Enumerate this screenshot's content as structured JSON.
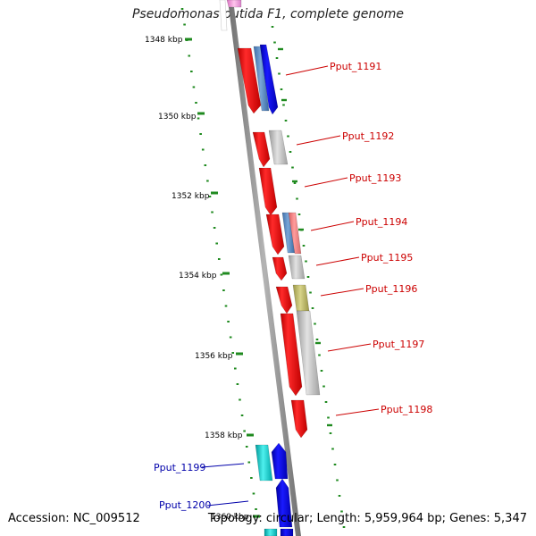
{
  "title": "Pseudomonas putida F1, complete genome",
  "accession": "Accession: NC_009512",
  "summary": "Topology: circular; Length: 5,959,964 bp; Genes: 5,347",
  "colors": {
    "backbone": "#8a8a8a",
    "scale_dots": "#1f8a1f",
    "label_forward": "#cc0000",
    "label_reverse": "#0000aa"
  },
  "scale_ticks": [
    {
      "label": "1348 kbp"
    },
    {
      "label": "1350 kbp"
    },
    {
      "label": "1352 kbp"
    },
    {
      "label": "1354 kbp"
    },
    {
      "label": "1356 kbp"
    },
    {
      "label": "1358 kbp"
    },
    {
      "label": "1360 kbp"
    }
  ],
  "gene_labels": [
    {
      "text": "Pput_1191",
      "strand": "forward"
    },
    {
      "text": "Pput_1192",
      "strand": "forward"
    },
    {
      "text": "Pput_1193",
      "strand": "forward"
    },
    {
      "text": "Pput_1194",
      "strand": "forward"
    },
    {
      "text": "Pput_1195",
      "strand": "forward"
    },
    {
      "text": "Pput_1196",
      "strand": "forward"
    },
    {
      "text": "Pput_1197",
      "strand": "forward"
    },
    {
      "text": "Pput_1198",
      "strand": "forward"
    },
    {
      "text": "Pput_1199",
      "strand": "reverse"
    },
    {
      "text": "Pput_1200",
      "strand": "reverse"
    }
  ]
}
